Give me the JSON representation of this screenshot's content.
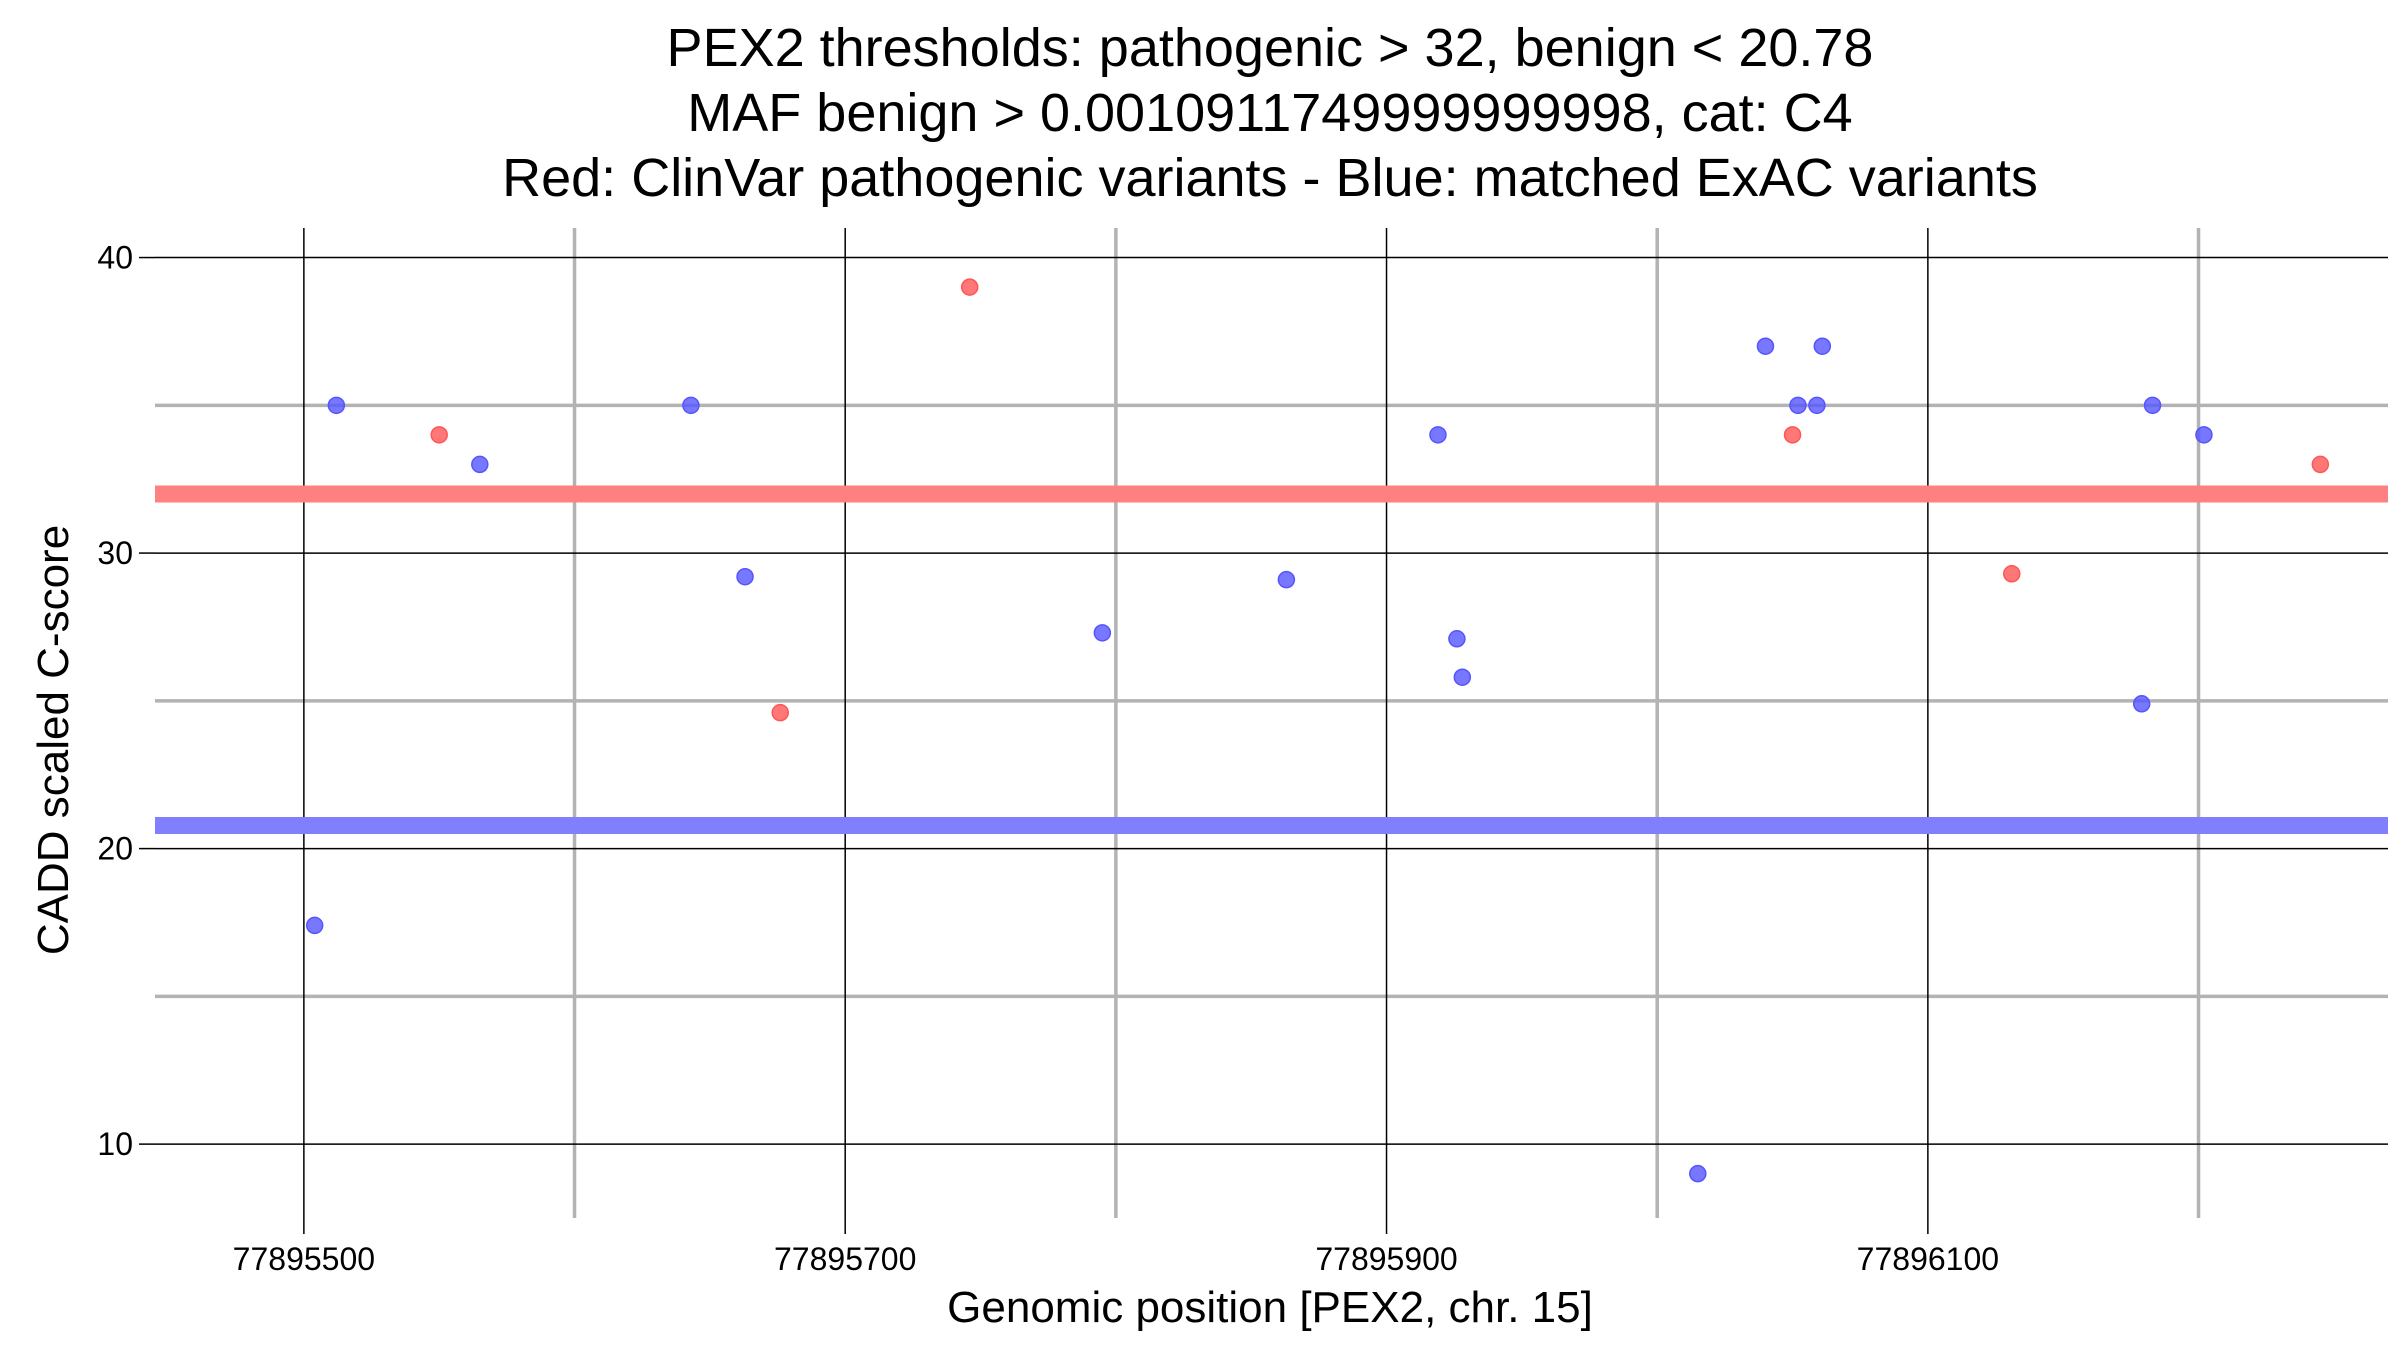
{
  "chart_data": {
    "type": "scatter",
    "title_lines": [
      "PEX2 thresholds: pathogenic > 32, benign < 20.78",
      "MAF benign > 0.0010911749999999998, cat: C4",
      "Red: ClinVar pathogenic variants - Blue: matched ExAC variants"
    ],
    "xlabel": "Genomic position [PEX2, chr. 15]",
    "ylabel": "CADD scaled C-score",
    "xlim": [
      77895445,
      77896270
    ],
    "ylim": [
      7.5,
      41
    ],
    "x_major_ticks": [
      77895500,
      77895700,
      77895900,
      77896100
    ],
    "x_tick_labels": [
      "77895500",
      "77895700",
      "77895900",
      "77896100"
    ],
    "x_minor_gridlines": [
      77895600,
      77895800,
      77896000,
      77896200
    ],
    "y_major_ticks": [
      10,
      20,
      30,
      40
    ],
    "y_tick_labels": [
      "10",
      "20",
      "30",
      "40"
    ],
    "y_minor_gridlines": [
      15,
      25,
      35
    ],
    "thresholds": [
      {
        "name": "pathogenic",
        "value": 32,
        "color": "#ff8080"
      },
      {
        "name": "benign",
        "value": 20.78,
        "color": "#8080ff"
      }
    ],
    "series": [
      {
        "name": "ClinVar pathogenic variants",
        "color": "#ff5555",
        "points": [
          {
            "x": 77895550,
            "y": 34
          },
          {
            "x": 77895676,
            "y": 24.6
          },
          {
            "x": 77895746,
            "y": 39
          },
          {
            "x": 77896050,
            "y": 34
          },
          {
            "x": 77896131,
            "y": 29.3
          },
          {
            "x": 77896245,
            "y": 33
          }
        ]
      },
      {
        "name": "matched ExAC variants",
        "color": "#5555ff",
        "points": [
          {
            "x": 77895504,
            "y": 17.4
          },
          {
            "x": 77895512,
            "y": 35
          },
          {
            "x": 77895565,
            "y": 33
          },
          {
            "x": 77895643,
            "y": 35
          },
          {
            "x": 77895663,
            "y": 29.2
          },
          {
            "x": 77895795,
            "y": 27.3
          },
          {
            "x": 77895863,
            "y": 29.1
          },
          {
            "x": 77895919,
            "y": 34
          },
          {
            "x": 77895926,
            "y": 27.1
          },
          {
            "x": 77895928,
            "y": 25.8
          },
          {
            "x": 77896015,
            "y": 9
          },
          {
            "x": 77896040,
            "y": 37
          },
          {
            "x": 77896052,
            "y": 35
          },
          {
            "x": 77896059,
            "y": 35
          },
          {
            "x": 77896061,
            "y": 37
          },
          {
            "x": 77896179,
            "y": 24.9
          },
          {
            "x": 77896183,
            "y": 35
          },
          {
            "x": 77896202,
            "y": 34
          }
        ]
      }
    ]
  }
}
